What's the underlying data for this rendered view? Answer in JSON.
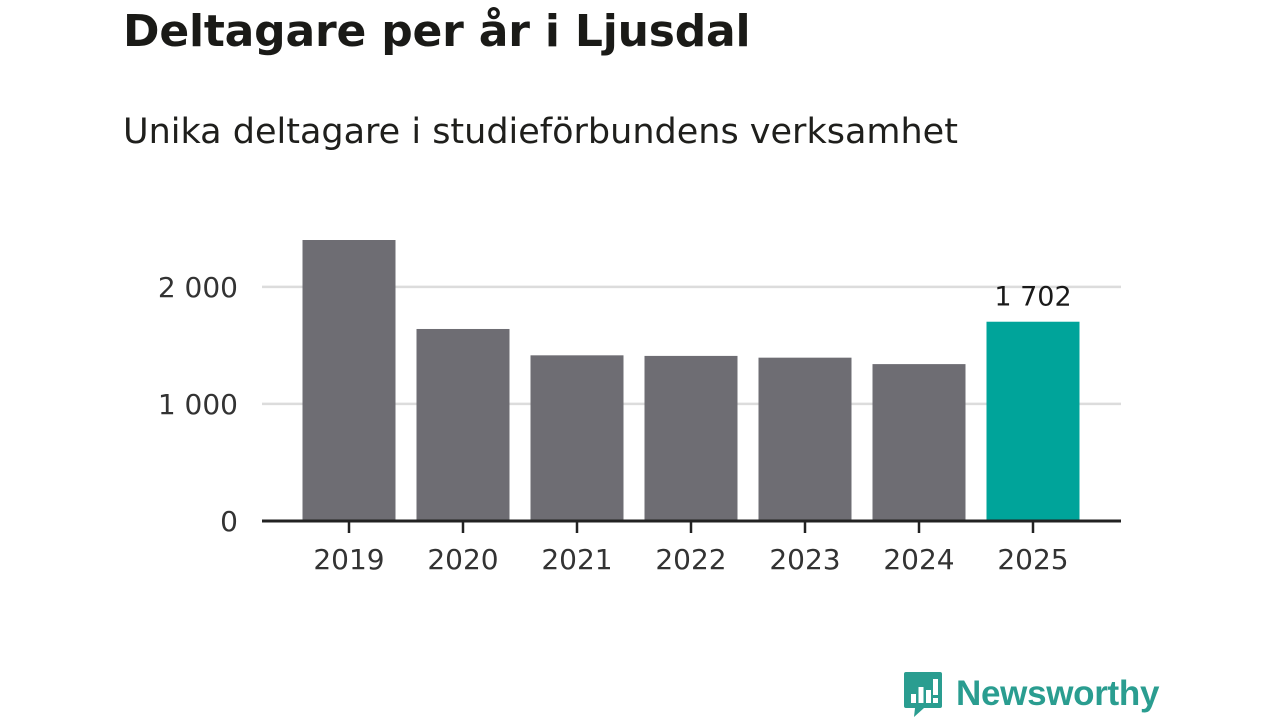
{
  "header": {
    "title": "Deltagare per år i Ljusdal",
    "subtitle": "Unika deltagare i studieförbundens verksamhet"
  },
  "chart_data": {
    "type": "bar",
    "title": "Deltagare per år i Ljusdal",
    "subtitle": "Unika deltagare i studieförbundens verksamhet",
    "xlabel": "",
    "ylabel": "",
    "categories": [
      "2019",
      "2020",
      "2021",
      "2022",
      "2023",
      "2024",
      "2025"
    ],
    "values": [
      2400,
      1640,
      1415,
      1410,
      1395,
      1340,
      1702
    ],
    "highlight_index": 6,
    "data_labels": [
      {
        "index": 6,
        "text": "1 702"
      }
    ],
    "ylim": [
      0,
      2400
    ],
    "yticks": [
      0,
      1000,
      2000
    ],
    "ytick_labels": [
      "0",
      "1 000",
      "2 000"
    ],
    "grid": true,
    "colors": {
      "bar": "#6e6d73",
      "highlight": "#00a49a",
      "grid": "#dcdcdc",
      "axis": "#222222",
      "text": "#333333"
    }
  },
  "logo": {
    "text": "Newsworthy",
    "color": "#2a9d90"
  }
}
